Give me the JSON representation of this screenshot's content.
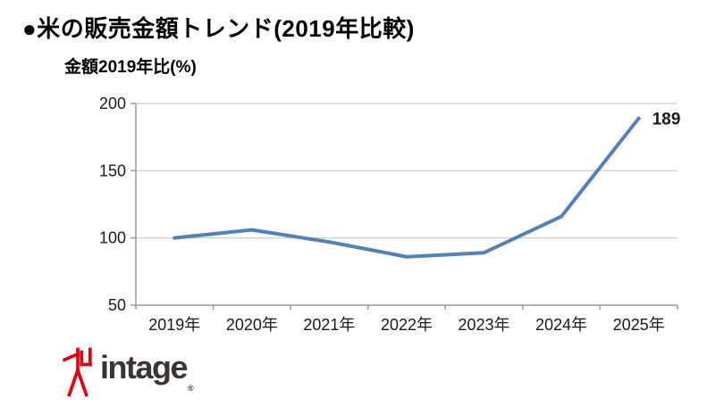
{
  "page": {
    "background": "#ffffff"
  },
  "header": {
    "title": "●米の販売金額トレンド(2019年比較)"
  },
  "chart_data": {
    "type": "line",
    "title": "金額2019年比(%)",
    "categories": [
      "2019年",
      "2020年",
      "2021年",
      "2022年",
      "2023年",
      "2024年",
      "2025年"
    ],
    "series": [
      {
        "name": "金額2019年比",
        "values": [
          100,
          106,
          97,
          86,
          89,
          116,
          189
        ],
        "color": "#4f81bd"
      }
    ],
    "ylim": [
      50,
      200
    ],
    "yticks": [
      50,
      100,
      150,
      200
    ],
    "grid": true,
    "legend": "none",
    "annotation": {
      "text": "189",
      "color": "#ff0000",
      "target": "last-point"
    },
    "axis_color": "#9b9b9b",
    "grid_color": "#c9c9c9",
    "tick_label_color": "#1a1a1a"
  },
  "logo": {
    "text": "intage",
    "registered_mark": "®",
    "text_color": "#3a3532",
    "mark_color": "#e60012"
  }
}
